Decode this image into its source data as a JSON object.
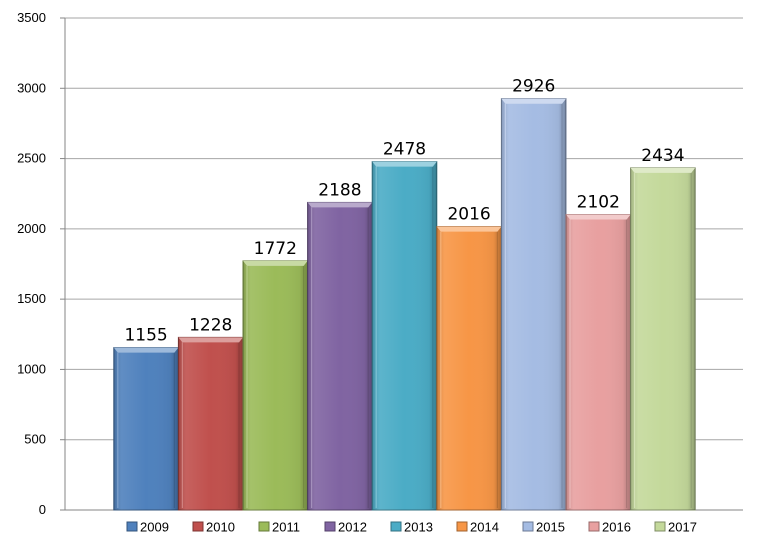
{
  "chart_data": {
    "type": "bar",
    "categories": [
      "2009",
      "2010",
      "2011",
      "2012",
      "2013",
      "2014",
      "2015",
      "2016",
      "2017"
    ],
    "values": [
      1155,
      1228,
      1772,
      2188,
      2478,
      2016,
      2926,
      2102,
      2434
    ],
    "colors": [
      "#4f81bd",
      "#c0504d",
      "#9bbb59",
      "#8064a2",
      "#4bacc6",
      "#f79646",
      "#a5bce3",
      "#e8a0a0",
      "#c4d99b"
    ],
    "title": "",
    "xlabel": "",
    "ylabel": "",
    "ylim": [
      0,
      3500
    ],
    "y_ticks": [
      0,
      500,
      1000,
      1500,
      2000,
      2500,
      3000,
      3500
    ],
    "grid": "horizontal",
    "legend_position": "bottom",
    "style": "3d-bevel",
    "data_labels": true
  }
}
